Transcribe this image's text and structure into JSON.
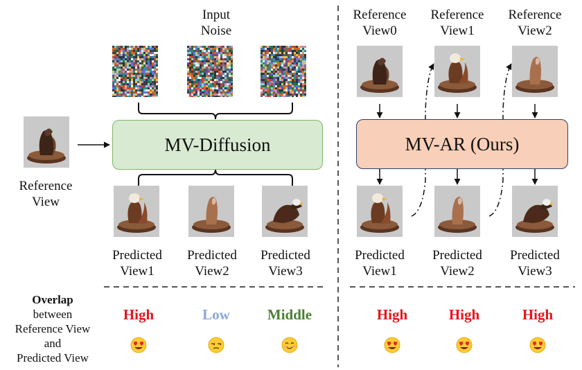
{
  "left": {
    "input_noise_label": [
      "Input",
      "Noise"
    ],
    "model_label": "MV-Diffusion",
    "reference_label": [
      "Reference",
      "View"
    ],
    "predicted_labels": [
      [
        "Predicted",
        "View1"
      ],
      [
        "Predicted",
        "View2"
      ],
      [
        "Predicted",
        "View3"
      ]
    ],
    "overlap": [
      {
        "text": "High",
        "color": "#e8141b",
        "emoji": "heart-eyes"
      },
      {
        "text": "Low",
        "color": "#8ba6d8",
        "emoji": "unamused"
      },
      {
        "text": "Middle",
        "color": "#4a7f32",
        "emoji": "smiling"
      }
    ]
  },
  "right": {
    "reference_labels": [
      [
        "Reference",
        "View0"
      ],
      [
        "Reference",
        "View1"
      ],
      [
        "Reference",
        "View2"
      ]
    ],
    "model_label": "MV-AR (Ours)",
    "predicted_labels": [
      [
        "Predicted",
        "View1"
      ],
      [
        "Predicted",
        "View2"
      ],
      [
        "Predicted",
        "View3"
      ]
    ],
    "overlap": [
      {
        "text": "High",
        "color": "#e8141b",
        "emoji": "heart-eyes"
      },
      {
        "text": "High",
        "color": "#e8141b",
        "emoji": "heart-eyes"
      },
      {
        "text": "High",
        "color": "#e8141b",
        "emoji": "heart-eyes"
      }
    ]
  },
  "legend": {
    "bold": "Overlap",
    "lines": [
      "between",
      "Reference View",
      "and",
      "Predicted View"
    ]
  },
  "colors": {
    "diffusion_fill": "#d9ead3",
    "diffusion_border": "#7fb56a",
    "ar_fill": "#f8cfb8",
    "ar_border": "#2b3f6e"
  }
}
